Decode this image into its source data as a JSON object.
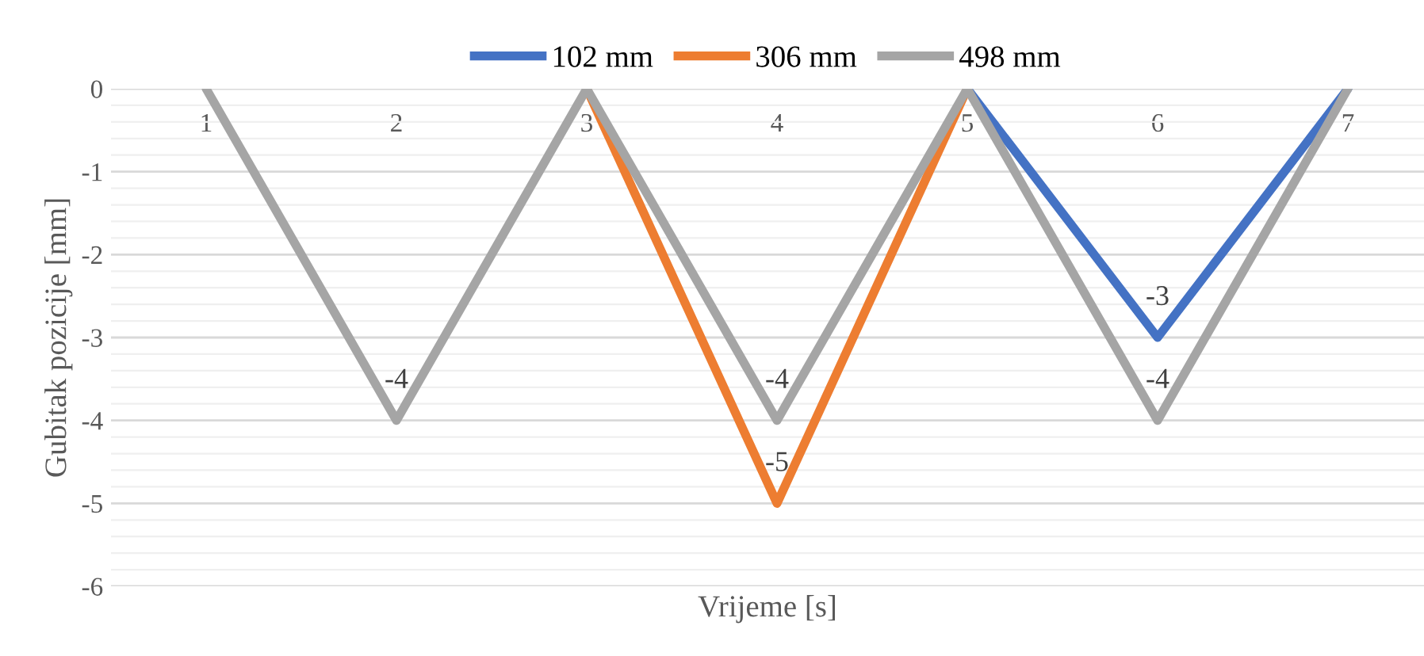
{
  "chart_data": {
    "type": "line",
    "xlabel": "Vrijeme [s]",
    "ylabel": "Gubitak pozicije [mm]",
    "categories": [
      "1",
      "2",
      "3",
      "4",
      "5",
      "6",
      "7"
    ],
    "series": [
      {
        "name": "102 mm",
        "color": "#4472c4",
        "values": [
          null,
          null,
          null,
          null,
          0,
          -3,
          0
        ],
        "value_labels": [
          null,
          null,
          null,
          null,
          null,
          "-3",
          null
        ]
      },
      {
        "name": "306 mm",
        "color": "#ed7d31",
        "values": [
          null,
          null,
          0,
          -5,
          0,
          null,
          null
        ],
        "value_labels": [
          null,
          null,
          null,
          "-5",
          null,
          null,
          null
        ]
      },
      {
        "name": "498 mm",
        "color": "#a5a5a5",
        "values": [
          0,
          -4,
          0,
          -4,
          0,
          -4,
          0
        ],
        "value_labels": [
          null,
          "-4",
          null,
          "-4",
          null,
          "-4",
          null
        ]
      }
    ],
    "ylim": [
      -6,
      0
    ],
    "yticks": [
      -6,
      -5,
      -4,
      -3,
      -2,
      -1,
      0
    ],
    "grid": "y",
    "legend": "top",
    "marker": "none",
    "line_style": "solid"
  }
}
